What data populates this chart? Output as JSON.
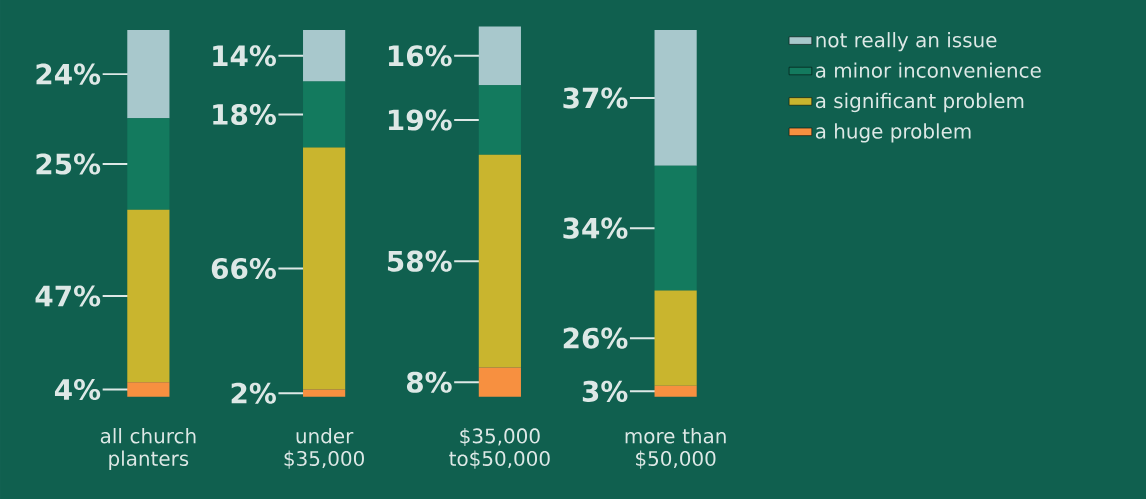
{
  "chart_data": {
    "type": "bar",
    "stacked": true,
    "categories": [
      "all church planters",
      "under $35,000",
      "$35,000 to$50,000",
      "more than $50,000"
    ],
    "series": [
      {
        "name": "a huge problem",
        "color": "#f79040",
        "values": [
          4,
          2,
          8,
          3
        ],
        "value_labels": [
          "4%",
          "2%",
          "8%",
          "3%"
        ]
      },
      {
        "name": "a significant problem",
        "color": "#c9b52e",
        "values": [
          47,
          66,
          58,
          26
        ],
        "value_labels": [
          "47%",
          "66%",
          "58%",
          "26%"
        ]
      },
      {
        "name": "a minor inconvenience",
        "color": "#137a5e",
        "values": [
          25,
          18,
          19,
          34
        ],
        "value_labels": [
          "25%",
          "18%",
          "19%",
          "34%"
        ]
      },
      {
        "name": "not really an issue",
        "color": "#a8c8cc",
        "values": [
          24,
          14,
          16,
          37
        ],
        "value_labels": [
          "24%",
          "14%",
          "16%",
          "37%"
        ]
      }
    ],
    "ylim": [
      0,
      101
    ],
    "legend": "top right",
    "grid": false,
    "tick_labels": "x"
  }
}
